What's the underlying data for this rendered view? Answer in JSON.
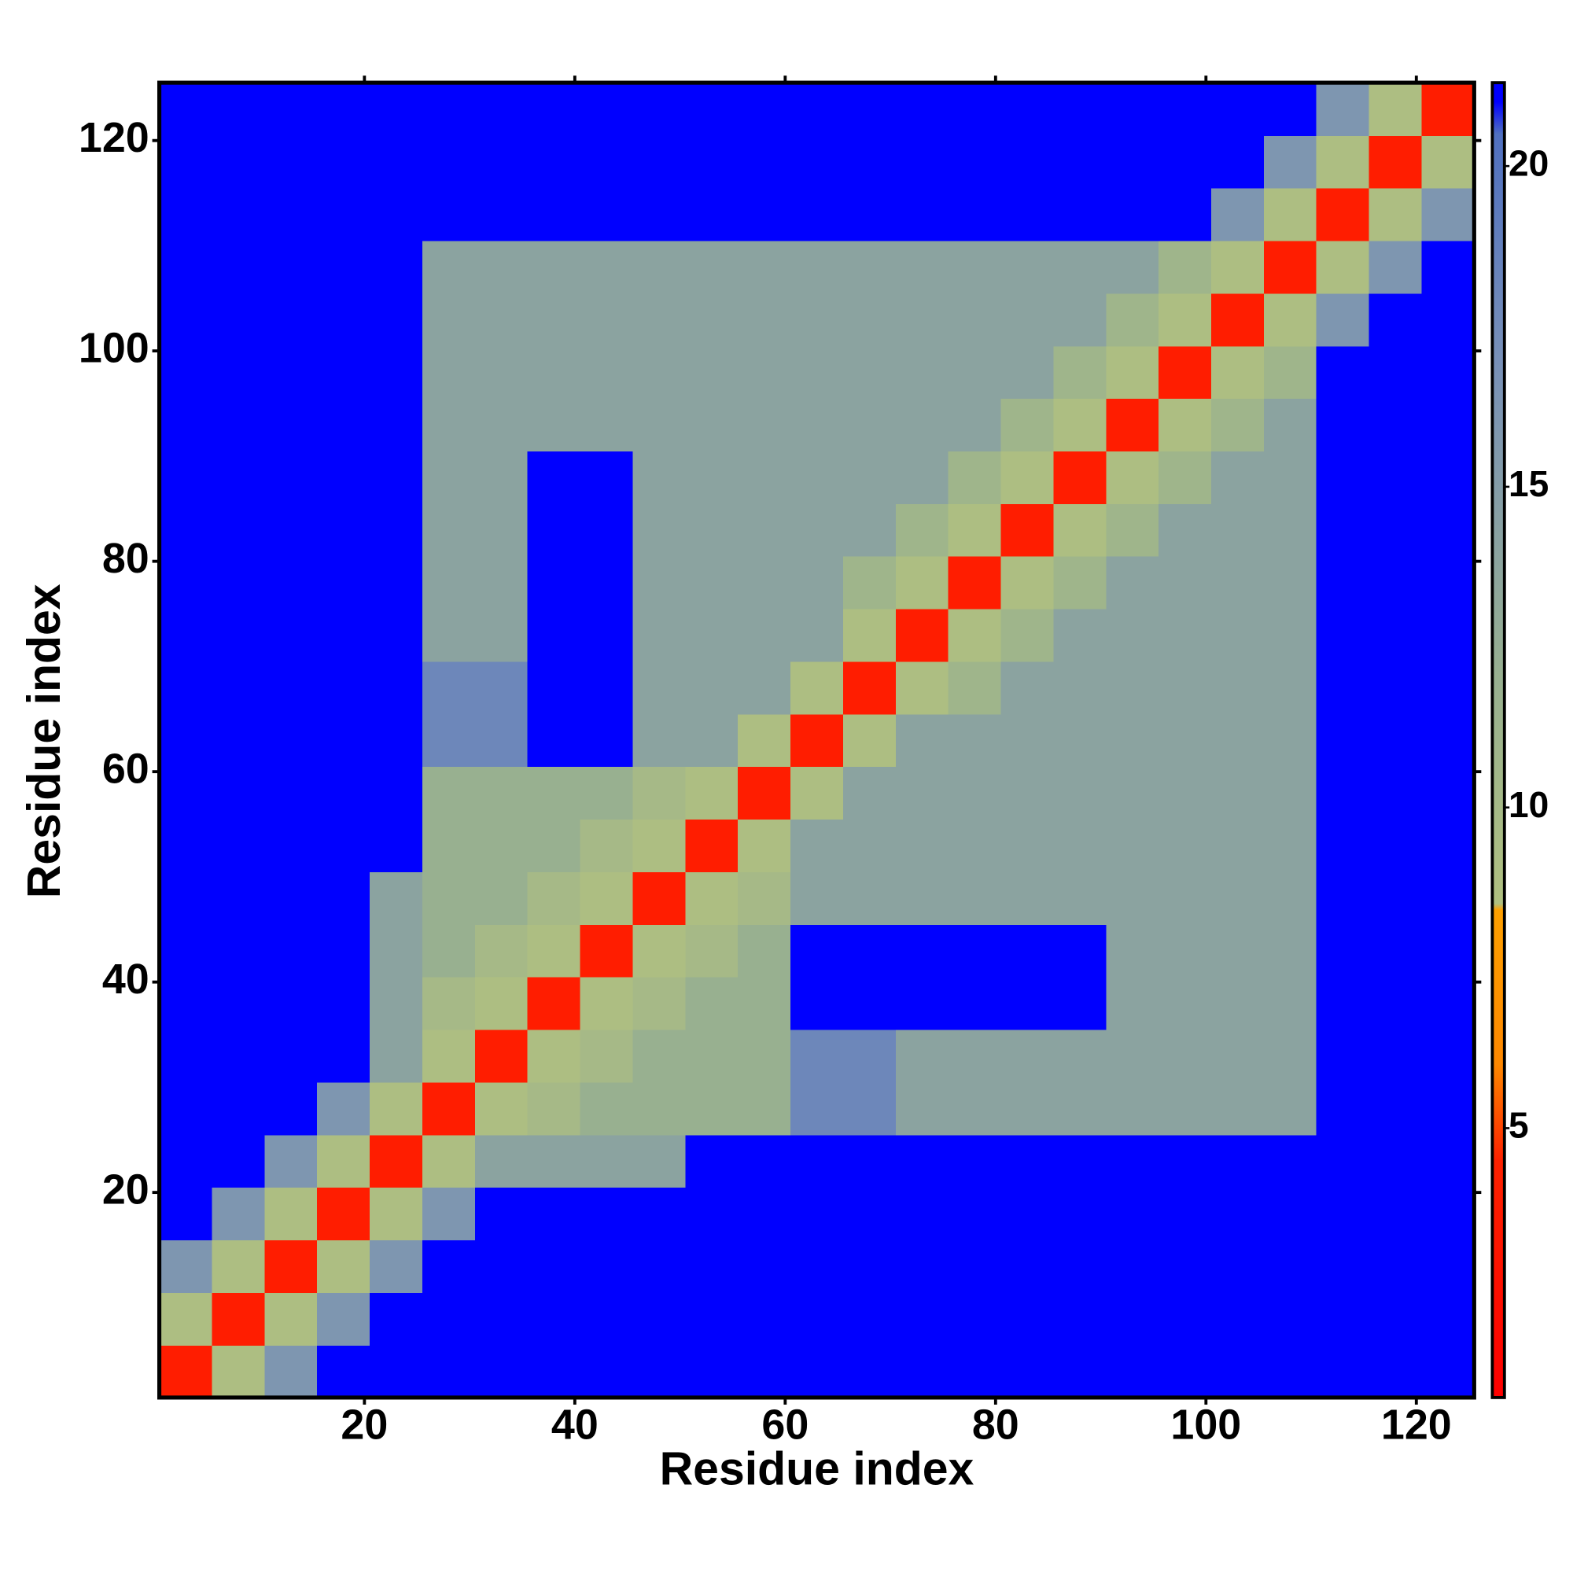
{
  "chart_data": {
    "type": "heatmap",
    "xlabel": "Residue index",
    "ylabel": "Residue index",
    "xbins": [
      0.5,
      5.5,
      10.5,
      15.5,
      20.5,
      25.5,
      30.5,
      35.5,
      40.5,
      45.5,
      50.5,
      55.5,
      60.5,
      65.5,
      70.5,
      75.5,
      80.5,
      85.5,
      90.5,
      95.5,
      100.5,
      105.5,
      110.5,
      115.5,
      120.5,
      125.5
    ],
    "ybins": [
      0.5,
      5.5,
      10.5,
      15.5,
      20.5,
      25.5,
      30.5,
      35.5,
      40.5,
      45.5,
      50.5,
      55.5,
      60.5,
      65.5,
      70.5,
      75.5,
      80.5,
      85.5,
      90.5,
      95.5,
      100.5,
      105.5,
      110.5,
      115.5,
      120.5,
      125.5
    ],
    "values": [
      [
        4,
        9,
        16,
        21,
        21,
        21,
        21,
        21,
        21,
        21,
        21,
        21,
        21,
        21,
        21,
        21,
        21,
        21,
        21,
        21,
        21,
        21,
        21,
        21,
        21
      ],
      [
        9,
        4,
        9,
        16,
        21,
        21,
        21,
        21,
        21,
        21,
        21,
        21,
        21,
        21,
        21,
        21,
        21,
        21,
        21,
        21,
        21,
        21,
        21,
        21,
        21
      ],
      [
        16,
        9,
        4,
        9,
        16,
        21,
        21,
        21,
        21,
        21,
        21,
        21,
        21,
        21,
        21,
        21,
        21,
        21,
        21,
        21,
        21,
        21,
        21,
        21,
        21
      ],
      [
        21,
        16,
        9,
        4,
        9,
        16,
        21,
        21,
        21,
        21,
        21,
        21,
        21,
        21,
        21,
        21,
        21,
        21,
        21,
        21,
        21,
        21,
        21,
        21,
        21
      ],
      [
        21,
        21,
        16,
        9,
        4,
        9,
        14,
        14,
        14,
        14,
        21,
        21,
        21,
        21,
        21,
        21,
        21,
        21,
        21,
        21,
        21,
        21,
        21,
        21,
        21
      ],
      [
        21,
        21,
        21,
        16,
        9,
        4,
        9,
        10,
        12,
        12,
        12,
        12,
        18,
        18,
        14,
        14,
        14,
        14,
        14,
        14,
        14,
        14,
        21,
        21,
        21
      ],
      [
        21,
        21,
        21,
        21,
        14,
        9,
        4,
        9,
        10,
        12,
        12,
        12,
        18,
        18,
        14,
        14,
        14,
        14,
        14,
        14,
        14,
        14,
        21,
        21,
        21
      ],
      [
        21,
        21,
        21,
        21,
        14,
        10,
        9,
        4,
        9,
        10,
        12,
        12,
        21,
        21,
        21,
        21,
        21,
        21,
        14,
        14,
        14,
        14,
        21,
        21,
        21
      ],
      [
        21,
        21,
        21,
        21,
        14,
        12,
        10,
        9,
        4,
        9,
        10,
        12,
        21,
        21,
        21,
        21,
        21,
        21,
        14,
        14,
        14,
        14,
        21,
        21,
        21
      ],
      [
        21,
        21,
        21,
        21,
        14,
        12,
        12,
        10,
        9,
        4,
        9,
        10,
        14,
        14,
        14,
        14,
        14,
        14,
        14,
        14,
        14,
        14,
        21,
        21,
        21
      ],
      [
        21,
        21,
        21,
        21,
        21,
        12,
        12,
        12,
        10,
        9,
        4,
        9,
        14,
        14,
        14,
        14,
        14,
        14,
        14,
        14,
        14,
        14,
        21,
        21,
        21
      ],
      [
        21,
        21,
        21,
        21,
        21,
        12,
        12,
        12,
        12,
        10,
        9,
        4,
        9,
        14,
        14,
        14,
        14,
        14,
        14,
        14,
        14,
        14,
        21,
        21,
        21
      ],
      [
        21,
        21,
        21,
        21,
        21,
        18,
        18,
        21,
        21,
        14,
        14,
        9,
        4,
        9,
        14,
        14,
        14,
        14,
        14,
        14,
        14,
        14,
        21,
        21,
        21
      ],
      [
        21,
        21,
        21,
        21,
        21,
        18,
        18,
        21,
        21,
        14,
        14,
        14,
        9,
        4,
        9,
        11,
        14,
        14,
        14,
        14,
        14,
        14,
        21,
        21,
        21
      ],
      [
        21,
        21,
        21,
        21,
        21,
        14,
        14,
        21,
        21,
        14,
        14,
        14,
        14,
        9,
        4,
        9,
        11,
        14,
        14,
        14,
        14,
        14,
        21,
        21,
        21
      ],
      [
        21,
        21,
        21,
        21,
        21,
        14,
        14,
        21,
        21,
        14,
        14,
        14,
        14,
        11,
        9,
        4,
        9,
        11,
        14,
        14,
        14,
        14,
        21,
        21,
        21
      ],
      [
        21,
        21,
        21,
        21,
        21,
        14,
        14,
        21,
        21,
        14,
        14,
        14,
        14,
        14,
        11,
        9,
        4,
        9,
        11,
        14,
        14,
        14,
        21,
        21,
        21
      ],
      [
        21,
        21,
        21,
        21,
        21,
        14,
        14,
        21,
        21,
        14,
        14,
        14,
        14,
        14,
        14,
        11,
        9,
        4,
        9,
        11,
        14,
        14,
        21,
        21,
        21
      ],
      [
        21,
        21,
        21,
        21,
        21,
        14,
        14,
        14,
        14,
        14,
        14,
        14,
        14,
        14,
        14,
        14,
        11,
        9,
        4,
        9,
        11,
        14,
        21,
        21,
        21
      ],
      [
        21,
        21,
        21,
        21,
        21,
        14,
        14,
        14,
        14,
        14,
        14,
        14,
        14,
        14,
        14,
        14,
        14,
        11,
        9,
        4,
        9,
        11,
        21,
        21,
        21
      ],
      [
        21,
        21,
        21,
        21,
        21,
        14,
        14,
        14,
        14,
        14,
        14,
        14,
        14,
        14,
        14,
        14,
        14,
        14,
        11,
        9,
        4,
        9,
        16,
        21,
        21
      ],
      [
        21,
        21,
        21,
        21,
        21,
        14,
        14,
        14,
        14,
        14,
        14,
        14,
        14,
        14,
        14,
        14,
        14,
        14,
        14,
        11,
        9,
        4,
        9,
        16,
        21
      ],
      [
        21,
        21,
        21,
        21,
        21,
        21,
        21,
        21,
        21,
        21,
        21,
        21,
        21,
        21,
        21,
        21,
        21,
        21,
        21,
        21,
        16,
        9,
        4,
        9,
        16
      ],
      [
        21,
        21,
        21,
        21,
        21,
        21,
        21,
        21,
        21,
        21,
        21,
        21,
        21,
        21,
        21,
        21,
        21,
        21,
        21,
        21,
        21,
        16,
        9,
        4,
        9
      ],
      [
        21,
        21,
        21,
        21,
        21,
        21,
        21,
        21,
        21,
        21,
        21,
        21,
        21,
        21,
        21,
        21,
        21,
        21,
        21,
        21,
        21,
        21,
        16,
        9,
        4
      ]
    ],
    "xlim": [
      0.5,
      125.5
    ],
    "ylim": [
      0.5,
      125.5
    ],
    "xticks": [
      20,
      40,
      60,
      80,
      100,
      120
    ],
    "yticks": [
      20,
      40,
      60,
      80,
      100,
      120
    ],
    "colorscale": [
      [
        0.8,
        "#ff0000"
      ],
      [
        4.5,
        "#ff2200"
      ],
      [
        6,
        "#ff8800"
      ],
      [
        8.4,
        "#ffa000"
      ],
      [
        8.5,
        "#b0c080"
      ],
      [
        12,
        "#98b090"
      ],
      [
        17,
        "#7890b8"
      ],
      [
        20.5,
        "#5070c0"
      ],
      [
        21,
        "#0000ff"
      ]
    ],
    "colorbar": {
      "clim": [
        0.8,
        21.3
      ],
      "ticks": [
        5,
        10,
        15,
        20
      ]
    }
  }
}
